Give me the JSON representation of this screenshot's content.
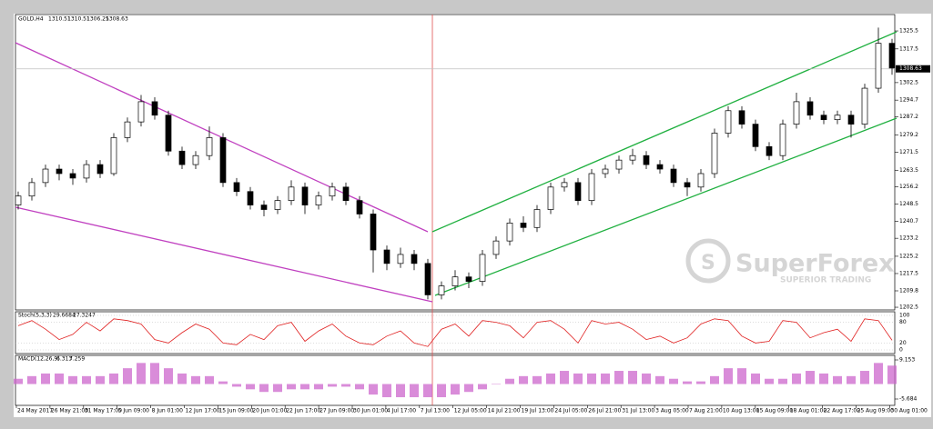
{
  "header": {
    "symbol": "GOLD,H4",
    "open": 1310.51,
    "high": 1310.51,
    "low": 1306.25,
    "close": 1308.63
  },
  "chart_data": {
    "type": "candlestick",
    "candles": [
      [
        1248,
        1254,
        1246,
        1252
      ],
      [
        1252,
        1260,
        1250,
        1258
      ],
      [
        1258,
        1266,
        1256,
        1264
      ],
      [
        1264,
        1266,
        1259,
        1262
      ],
      [
        1262,
        1264,
        1257,
        1260
      ],
      [
        1260,
        1268,
        1258,
        1266
      ],
      [
        1266,
        1268,
        1260,
        1262
      ],
      [
        1262,
        1280,
        1261,
        1278
      ],
      [
        1278,
        1287,
        1276,
        1285
      ],
      [
        1285,
        1297,
        1283,
        1294
      ],
      [
        1294,
        1296,
        1286,
        1288
      ],
      [
        1288,
        1290,
        1270,
        1272
      ],
      [
        1272,
        1274,
        1264,
        1266
      ],
      [
        1266,
        1272,
        1264,
        1270
      ],
      [
        1270,
        1283,
        1268,
        1278
      ],
      [
        1278,
        1280,
        1256,
        1258
      ],
      [
        1258,
        1260,
        1252,
        1254
      ],
      [
        1254,
        1256,
        1246,
        1248
      ],
      [
        1248,
        1250,
        1243,
        1246
      ],
      [
        1246,
        1252,
        1244,
        1250
      ],
      [
        1250,
        1259,
        1248,
        1256
      ],
      [
        1256,
        1258,
        1244,
        1248
      ],
      [
        1248,
        1254,
        1246,
        1252
      ],
      [
        1252,
        1258,
        1250,
        1256
      ],
      [
        1256,
        1258,
        1248,
        1250
      ],
      [
        1250,
        1252,
        1242,
        1244
      ],
      [
        1244,
        1246,
        1218,
        1228
      ],
      [
        1228,
        1230,
        1219,
        1222
      ],
      [
        1222,
        1229,
        1220,
        1226
      ],
      [
        1226,
        1228,
        1219,
        1222
      ],
      [
        1222,
        1224,
        1206,
        1208
      ],
      [
        1208,
        1214,
        1206,
        1212
      ],
      [
        1212,
        1219,
        1210,
        1216
      ],
      [
        1216,
        1218,
        1211,
        1214
      ],
      [
        1214,
        1228,
        1212,
        1226
      ],
      [
        1226,
        1234,
        1224,
        1232
      ],
      [
        1232,
        1242,
        1230,
        1240
      ],
      [
        1240,
        1243,
        1236,
        1238
      ],
      [
        1238,
        1248,
        1236,
        1246
      ],
      [
        1246,
        1258,
        1244,
        1256
      ],
      [
        1256,
        1260,
        1254,
        1258
      ],
      [
        1258,
        1260,
        1248,
        1250
      ],
      [
        1250,
        1264,
        1248,
        1262
      ],
      [
        1262,
        1266,
        1260,
        1264
      ],
      [
        1264,
        1270,
        1262,
        1268
      ],
      [
        1268,
        1273,
        1266,
        1270
      ],
      [
        1270,
        1272,
        1264,
        1266
      ],
      [
        1266,
        1268,
        1262,
        1264
      ],
      [
        1264,
        1266,
        1256,
        1258
      ],
      [
        1258,
        1260,
        1252,
        1256
      ],
      [
        1256,
        1264,
        1254,
        1262
      ],
      [
        1262,
        1282,
        1260,
        1280
      ],
      [
        1280,
        1292,
        1278,
        1290
      ],
      [
        1290,
        1292,
        1282,
        1284
      ],
      [
        1284,
        1286,
        1272,
        1274
      ],
      [
        1274,
        1276,
        1268,
        1270
      ],
      [
        1270,
        1286,
        1268,
        1284
      ],
      [
        1284,
        1298,
        1282,
        1294
      ],
      [
        1294,
        1296,
        1286,
        1288
      ],
      [
        1288,
        1290,
        1284,
        1286
      ],
      [
        1286,
        1290,
        1284,
        1288
      ],
      [
        1288,
        1290,
        1278,
        1284
      ],
      [
        1284,
        1302,
        1282,
        1300
      ],
      [
        1300,
        1327,
        1298,
        1320
      ],
      [
        1320,
        1322,
        1306,
        1309
      ]
    ],
    "ylim": [
      1201.3,
      1332.8
    ],
    "yticks": [
      1325.5,
      1317.5,
      1302.5,
      1294.7,
      1287.2,
      1279.2,
      1271.5,
      1263.5,
      1256.2,
      1248.5,
      1240.7,
      1233.2,
      1225.2,
      1217.5,
      1209.8,
      1202.5
    ],
    "time_labels": [
      "24 May 2017",
      "26 May 21:00",
      "31 May 17:00",
      "5 Jun 09:00",
      "8 Jun 01:00",
      "12 Jun 17:00",
      "15 Jun 09:00",
      "20 Jun 01:00",
      "22 Jun 17:00",
      "27 Jun 09:00",
      "30 Jun 01:00",
      "4 Jul 17:00",
      "7 Jul 13:00",
      "12 Jul 05:00",
      "14 Jul 21:00",
      "19 Jul 13:00",
      "24 Jul 05:00",
      "26 Jul 21:00",
      "31 Jul 13:00",
      "3 Aug 05:00",
      "7 Aug 21:00",
      "10 Aug 13:00",
      "15 Aug 09:00",
      "18 Aug 01:00",
      "22 Aug 17:00",
      "25 Aug 09:00",
      "30 Aug 01:00"
    ],
    "color": "#000000"
  },
  "stoch": {
    "name": "Stoch(5,3,3)",
    "main": 29.6684,
    "signal": 27.3247,
    "color": "#e02020",
    "values": [
      70,
      85,
      60,
      30,
      45,
      80,
      55,
      90,
      85,
      75,
      30,
      20,
      50,
      75,
      60,
      20,
      15,
      45,
      30,
      70,
      80,
      25,
      55,
      75,
      40,
      20,
      15,
      40,
      55,
      20,
      10,
      60,
      75,
      40,
      85,
      80,
      70,
      35,
      80,
      85,
      60,
      20,
      85,
      75,
      80,
      60,
      30,
      40,
      20,
      35,
      75,
      90,
      85,
      40,
      20,
      25,
      85,
      80,
      35,
      50,
      60,
      25,
      90,
      85,
      28
    ],
    "ylim": [
      -10.5,
      110.5
    ],
    "yticks": [
      100,
      80,
      20,
      0
    ]
  },
  "macd": {
    "name": "MACD(12,26,9)",
    "main": 6.313,
    "signal": 7.259,
    "color": "#cc66cc",
    "values": [
      2,
      3,
      4,
      4,
      3,
      3,
      3,
      4,
      6,
      8,
      8,
      6,
      4,
      3,
      3,
      1,
      -1,
      -2,
      -3,
      -3,
      -2,
      -2,
      -2,
      -1,
      -1,
      -2,
      -4,
      -5,
      -5,
      -5,
      -5,
      -5,
      -4,
      -3,
      -2,
      0,
      2,
      3,
      3,
      4,
      5,
      4,
      4,
      4,
      5,
      5,
      4,
      3,
      2,
      1,
      1,
      3,
      6,
      6,
      4,
      2,
      2,
      4,
      5,
      4,
      3,
      3,
      5,
      8,
      7
    ],
    "ylim": [
      -8.1,
      10.88
    ],
    "yticks": [
      9.153,
      -5.684
    ]
  },
  "watermark": {
    "brand": "SuperForex",
    "tagline": "SUPERIOR TRADING"
  }
}
